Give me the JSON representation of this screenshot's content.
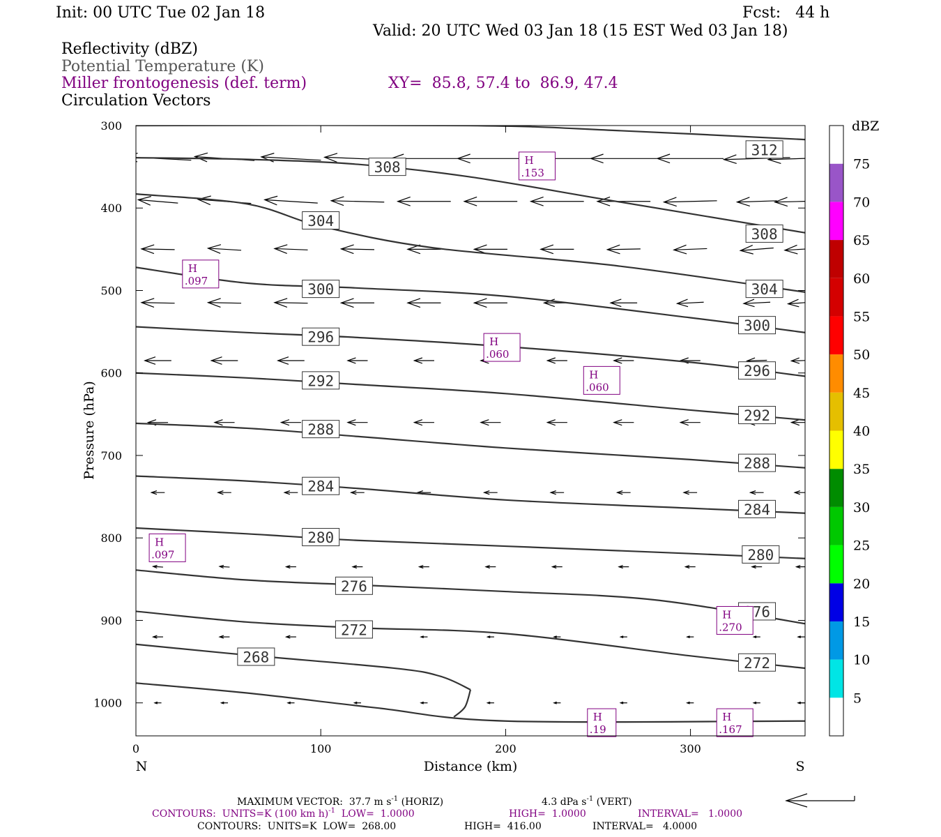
{
  "header": {
    "init": "Init: 00 UTC Tue 02 Jan 18",
    "fcst": "Fcst:   44 h",
    "valid": "Valid: 20 UTC Wed 03 Jan 18 (15 EST Wed 03 Jan 18)",
    "field1": "Reflectivity (dBZ)",
    "field2": "Potential Temperature (K)",
    "field3": "Miller frontogenesis (def. term)",
    "xy": "XY=  85.8, 57.4 to  86.9, 47.4",
    "field4": "Circulation Vectors"
  },
  "colors": {
    "purple": "#800080",
    "contour": "#333333",
    "grey_text": "#555555"
  },
  "chart_data": {
    "type": "cross-section",
    "xlabel": "Distance (km)",
    "ylabel": "Pressure (hPa)",
    "x_range": [
      0,
      362
    ],
    "y_range": [
      1040,
      300
    ],
    "x_ticks": [
      0,
      100,
      200,
      300
    ],
    "y_ticks": [
      300,
      400,
      500,
      600,
      700,
      800,
      900,
      1000
    ],
    "left_end_label": "N",
    "right_end_label": "S",
    "theta_contours": [
      {
        "value": 312,
        "points": [
          [
            0,
            300
          ],
          [
            180,
            300
          ],
          [
            260,
            306
          ],
          [
            362,
            317
          ]
        ],
        "label": "312",
        "label_at": [
          [
            330,
            329
          ]
        ]
      },
      {
        "value": 308,
        "points": [
          [
            0,
            339
          ],
          [
            60,
            341
          ],
          [
            120,
            347
          ],
          [
            180,
            362
          ],
          [
            260,
            392
          ],
          [
            362,
            430
          ]
        ],
        "label": "308",
        "label_at": [
          [
            126,
            350
          ],
          [
            330,
            431
          ]
        ]
      },
      {
        "value": 304,
        "points": [
          [
            0,
            383
          ],
          [
            60,
            395
          ],
          [
            100,
            422
          ],
          [
            160,
            448
          ],
          [
            260,
            470
          ],
          [
            362,
            502
          ]
        ],
        "label": "304",
        "label_at": [
          [
            90,
            415
          ],
          [
            330,
            498
          ]
        ]
      },
      {
        "value": 300,
        "points": [
          [
            0,
            472
          ],
          [
            60,
            491
          ],
          [
            120,
            497
          ],
          [
            200,
            507
          ],
          [
            300,
            533
          ],
          [
            362,
            551
          ]
        ],
        "label": "300",
        "label_at": [
          [
            90,
            498
          ],
          [
            326,
            542
          ]
        ]
      },
      {
        "value": 296,
        "points": [
          [
            0,
            544
          ],
          [
            60,
            551
          ],
          [
            120,
            557
          ],
          [
            200,
            568
          ],
          [
            300,
            587
          ],
          [
            362,
            604
          ]
        ],
        "label": "296",
        "label_at": [
          [
            90,
            556
          ],
          [
            326,
            597
          ]
        ]
      },
      {
        "value": 292,
        "points": [
          [
            0,
            600
          ],
          [
            60,
            606
          ],
          [
            120,
            614
          ],
          [
            200,
            625
          ],
          [
            300,
            645
          ],
          [
            362,
            657
          ]
        ],
        "label": "292",
        "label_at": [
          [
            90,
            609
          ],
          [
            326,
            651
          ]
        ]
      },
      {
        "value": 288,
        "points": [
          [
            0,
            661
          ],
          [
            60,
            667
          ],
          [
            120,
            677
          ],
          [
            200,
            691
          ],
          [
            300,
            705
          ],
          [
            362,
            715
          ]
        ],
        "label": "288",
        "label_at": [
          [
            90,
            668
          ],
          [
            326,
            709
          ]
        ]
      },
      {
        "value": 284,
        "points": [
          [
            0,
            725
          ],
          [
            60,
            731
          ],
          [
            120,
            740
          ],
          [
            200,
            754
          ],
          [
            300,
            764
          ],
          [
            362,
            770
          ]
        ],
        "label": "284",
        "label_at": [
          [
            90,
            737
          ],
          [
            326,
            765
          ]
        ]
      },
      {
        "value": 280,
        "points": [
          [
            0,
            788
          ],
          [
            60,
            795
          ],
          [
            120,
            803
          ],
          [
            200,
            810
          ],
          [
            300,
            819
          ],
          [
            362,
            825
          ]
        ],
        "label": "280",
        "label_at": [
          [
            90,
            799
          ],
          [
            328,
            820
          ]
        ]
      },
      {
        "value": 276,
        "points": [
          [
            0,
            839
          ],
          [
            60,
            851
          ],
          [
            120,
            857
          ],
          [
            200,
            865
          ],
          [
            280,
            875
          ],
          [
            362,
            904
          ]
        ],
        "label": "276",
        "label_at": [
          [
            108,
            858
          ],
          [
            326,
            889
          ]
        ]
      },
      {
        "value": 272,
        "points": [
          [
            0,
            889
          ],
          [
            60,
            902
          ],
          [
            120,
            909
          ],
          [
            200,
            916
          ],
          [
            300,
            943
          ],
          [
            362,
            958
          ]
        ],
        "label": "272",
        "label_at": [
          [
            108,
            911
          ],
          [
            326,
            951
          ]
        ]
      },
      {
        "value": 268,
        "points": [
          [
            0,
            929
          ],
          [
            60,
            942
          ],
          [
            140,
            958
          ],
          [
            165,
            968
          ],
          [
            181,
            984
          ]
        ],
        "label": "268",
        "label_at": [
          [
            55,
            944
          ]
        ]
      },
      {
        "value": 268,
        "points": [
          [
            181,
            984
          ],
          [
            178,
            1005
          ],
          [
            172,
            1017
          ]
        ],
        "label": "",
        "label_at": []
      },
      {
        "value": 268,
        "points": [
          [
            0,
            976
          ],
          [
            60,
            988
          ],
          [
            130,
            1006
          ],
          [
            200,
            1022
          ],
          [
            362,
            1022
          ]
        ],
        "label": "",
        "label_at": []
      }
    ],
    "frontogenesis_maxima": [
      {
        "symbol": "H",
        "value": ".153",
        "x": 217,
        "p": 349
      },
      {
        "symbol": "H",
        "value": ".097",
        "x": 35,
        "p": 480
      },
      {
        "symbol": "H",
        "value": ".060",
        "x": 198,
        "p": 569
      },
      {
        "symbol": "H",
        "value": ".060",
        "x": 252,
        "p": 609
      },
      {
        "symbol": "H",
        "value": ".097",
        "x": 17,
        "p": 812
      },
      {
        "symbol": "H",
        "value": ".270",
        "x": 324,
        "p": 900
      },
      {
        "symbol": "H",
        "value": ".19",
        "x": 252,
        "p": 1024
      },
      {
        "symbol": "H",
        "value": ".167",
        "x": 324,
        "p": 1024
      }
    ],
    "circulation_vectors": [
      {
        "p": 340,
        "u": [
          -1.0,
          -0.9,
          -0.9,
          -1.0,
          -1.0,
          -1.0,
          -1.0,
          -1.0,
          -1.0,
          -1.0,
          -1.0
        ],
        "w": [
          0.05,
          0.06,
          0.05,
          0.04,
          0.0,
          0.0,
          0.0,
          0.0,
          0.0,
          -0.03,
          -0.03
        ]
      },
      {
        "p": 392,
        "u": [
          -0.6,
          -0.8,
          -0.8,
          -0.8,
          -0.8,
          -0.8,
          -0.8,
          -0.8,
          -0.8,
          -0.6,
          -0.8
        ],
        "w": [
          0.05,
          0.06,
          0.05,
          0.02,
          0.0,
          0.0,
          0.0,
          0.0,
          -0.02,
          -0.02,
          -0.02
        ]
      },
      {
        "p": 450,
        "u": [
          -0.5,
          -0.5,
          -0.5,
          -0.5,
          -0.5,
          -0.5,
          -0.5,
          -0.5,
          -0.5,
          -0.5,
          -0.5
        ],
        "w": [
          0.01,
          0.03,
          0.02,
          0.01,
          0.0,
          0.0,
          0.0,
          -0.01,
          -0.02,
          -0.04,
          -0.03
        ]
      },
      {
        "p": 515,
        "u": [
          -0.5,
          -0.5,
          -0.5,
          -0.5,
          -0.5,
          -0.5,
          -0.4,
          -0.4,
          -0.4,
          -0.4,
          -0.4
        ],
        "w": [
          0.01,
          0.01,
          0.01,
          0.0,
          0.0,
          0.0,
          0.0,
          0.0,
          -0.02,
          -0.02,
          -0.03
        ]
      },
      {
        "p": 585,
        "u": [
          -0.4,
          -0.4,
          -0.4,
          -0.3,
          -0.3,
          -0.3,
          -0.3,
          -0.3,
          -0.3,
          -0.3,
          -0.3
        ],
        "w": [
          0.0,
          0.0,
          0.0,
          0.0,
          0.0,
          0.0,
          0.0,
          0.0,
          0.0,
          -0.01,
          -0.01
        ]
      },
      {
        "p": 660,
        "u": [
          -0.3,
          -0.3,
          -0.3,
          -0.3,
          -0.3,
          -0.3,
          -0.3,
          -0.3,
          -0.3,
          -0.3,
          -0.3
        ],
        "w": [
          0.0,
          0.0,
          0.0,
          0.0,
          0.0,
          0.0,
          0.0,
          0.0,
          0.0,
          0.0,
          0.0
        ]
      },
      {
        "p": 745,
        "u": [
          -0.2,
          -0.2,
          -0.2,
          -0.2,
          -0.2,
          -0.2,
          -0.2,
          -0.2,
          -0.2,
          -0.2,
          -0.2
        ],
        "w": [
          0.0,
          0.0,
          0.0,
          0.0,
          0.0,
          0.0,
          0.0,
          0.0,
          0.0,
          0.0,
          0.0
        ]
      },
      {
        "p": 835,
        "u": [
          -0.15,
          -0.15,
          -0.15,
          -0.15,
          -0.15,
          -0.15,
          -0.15,
          -0.15,
          -0.15,
          -0.15,
          -0.15
        ],
        "w": [
          0.01,
          0.01,
          0.0,
          0.0,
          0.0,
          0.0,
          0.0,
          0.0,
          0.0,
          0.0,
          0.0
        ]
      },
      {
        "p": 920,
        "u": [
          -0.15,
          -0.15,
          -0.15,
          -0.1,
          -0.1,
          -0.1,
          -0.1,
          -0.1,
          -0.1,
          -0.1,
          -0.1
        ],
        "w": [
          0.0,
          0.0,
          0.0,
          0.0,
          0.0,
          0.0,
          0.0,
          0.0,
          0.0,
          0.0,
          0.0
        ]
      },
      {
        "p": 1000,
        "u": [
          -0.1,
          -0.1,
          -0.1,
          -0.1,
          -0.1,
          -0.1,
          -0.1,
          -0.1,
          -0.1,
          -0.1,
          -0.1
        ],
        "w": [
          0.0,
          0.0,
          0.0,
          0.0,
          0.0,
          0.0,
          0.0,
          0.0,
          0.0,
          0.0,
          0.0
        ]
      }
    ],
    "vector_x_positions": [
      12,
      48,
      84,
      120,
      156,
      192,
      228,
      264,
      300,
      336,
      360
    ]
  },
  "colorbar": {
    "title": "dBZ",
    "labels": [
      "5",
      "10",
      "15",
      "20",
      "25",
      "30",
      "35",
      "40",
      "45",
      "50",
      "55",
      "60",
      "65",
      "70",
      "75"
    ],
    "colors": [
      "#ffffff",
      "#00e5e5",
      "#0099e5",
      "#0000e5",
      "#00ff00",
      "#00c800",
      "#008c00",
      "#ffff00",
      "#e5bf00",
      "#ff8c00",
      "#ff0000",
      "#d40000",
      "#bf0000",
      "#ff00ff",
      "#9955c8",
      "#ffffff"
    ]
  },
  "footer": {
    "line1_a": "MAXIMUM VECTOR:  37.7 m s",
    "line1_sup1": "-1",
    "line1_b": " (HORIZ)",
    "line1_c": "4.3 dPa s",
    "line1_sup2": "-1",
    "line1_d": " (VERT)",
    "line2_a": "CONTOURS:  UNITS=K (100 km h)",
    "line2_sup": "-1",
    "line2_b": "  LOW=  1.0000",
    "line2_c": "HIGH=  1.0000",
    "line2_d": "INTERVAL=   1.0000",
    "line3_a": "CONTOURS:  UNITS=K  LOW=  268.00",
    "line3_b": "HIGH=  416.00",
    "line3_c": "INTERVAL=   4.0000"
  }
}
